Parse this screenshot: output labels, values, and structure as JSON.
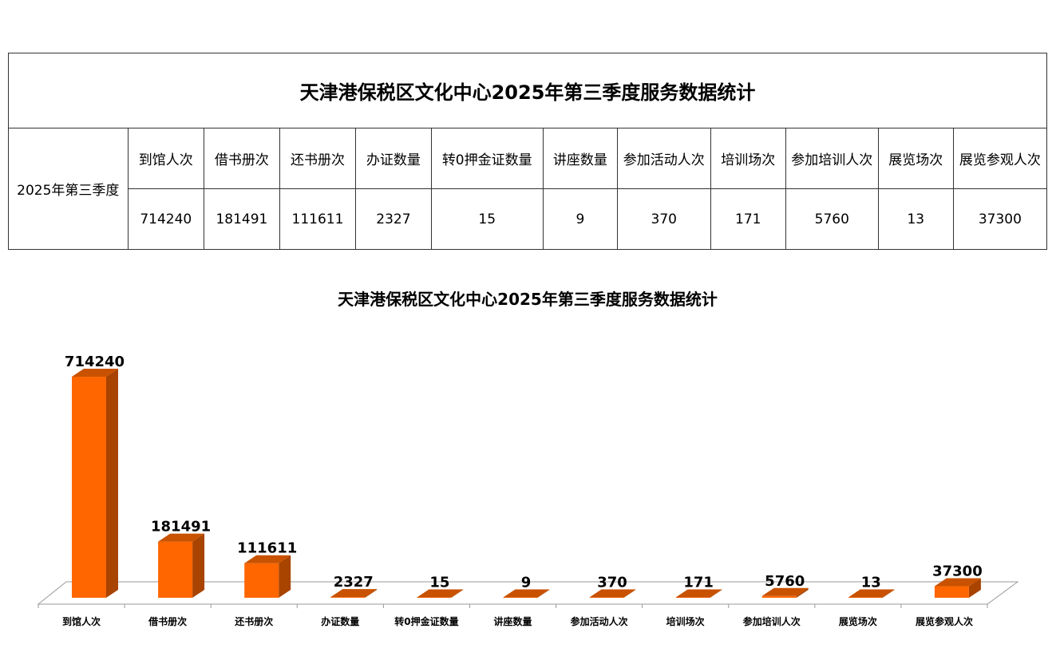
{
  "table": {
    "title": "天津港保税区文化中心2025年第三季度服务数据统计",
    "row_label": "2025年第三季度",
    "headers": [
      "到馆人次",
      "借书册次",
      "还书册次",
      "办证数量",
      "转0押金证数量",
      "讲座数量",
      "参加活动人次",
      "培训场次",
      "参加培训人次",
      "展览场次",
      "展览参观人次"
    ],
    "values": [
      "714240",
      "181491",
      "111611",
      "2327",
      "15",
      "9",
      "370",
      "171",
      "5760",
      "13",
      "37300"
    ]
  },
  "chart_data": {
    "type": "bar",
    "style": "3d-column",
    "title": "天津港保税区文化中心2025年第三季度服务数据统计",
    "categories": [
      "到馆人次",
      "借书册次",
      "还书册次",
      "办证数量",
      "转0押金证数量",
      "讲座数量",
      "参加活动人次",
      "培训场次",
      "参加培训人次",
      "展览场次",
      "展览参观人次"
    ],
    "values": [
      714240,
      181491,
      111611,
      2327,
      15,
      9,
      370,
      171,
      5760,
      13,
      37300
    ],
    "ylim": [
      0,
      714240
    ],
    "grid": false,
    "legend": "none",
    "colors": {
      "front": "#ff6600",
      "side": "#a84300",
      "top": "#c85200"
    }
  }
}
